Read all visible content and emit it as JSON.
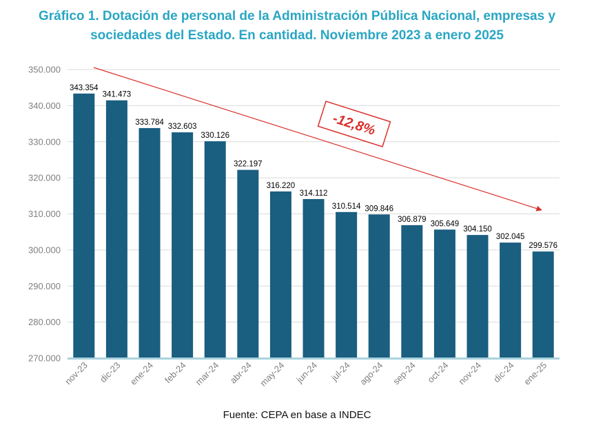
{
  "title_line1": "Gráfico 1. Dotación de personal de la Administración Pública Nacional, empresas y",
  "title_line2": "sociedades del Estado. En cantidad. Noviembre 2023 a enero 2025",
  "source": "Fuente: CEPA en base a INDEC",
  "colors": {
    "bar": "#1a5e80",
    "bar_base": "#a9d2de",
    "title": "#2aa6c3",
    "trend": "#d9302b",
    "grid": "#d9d9d9",
    "axis_text": "#7f7f7f"
  },
  "chart_data": {
    "type": "bar",
    "title": "Gráfico 1. Dotación de personal de la Administración Pública Nacional, empresas y sociedades del Estado. En cantidad. Noviembre 2023 a enero 2025",
    "categories": [
      "nov-23",
      "dic-23",
      "ene-24",
      "feb-24",
      "mar-24",
      "abr-24",
      "may-24",
      "jun-24",
      "jul-24",
      "ago-24",
      "sep-24",
      "oct-24",
      "nov-24",
      "dic-24",
      "ene-25"
    ],
    "values": [
      343354,
      341473,
      333784,
      332603,
      330126,
      322197,
      316220,
      314112,
      310514,
      309846,
      306879,
      305649,
      304150,
      302045,
      299576
    ],
    "value_labels": [
      "343.354",
      "341.473",
      "333.784",
      "332.603",
      "330.126",
      "322.197",
      "316.220",
      "314.112",
      "310.514",
      "309.846",
      "306.879",
      "305.649",
      "304.150",
      "302.045",
      "299.576"
    ],
    "y_ticks": [
      270000,
      280000,
      290000,
      300000,
      310000,
      320000,
      330000,
      340000,
      350000
    ],
    "y_tick_labels": [
      "270.000",
      "280.000",
      "290.000",
      "300.000",
      "310.000",
      "320.000",
      "330.000",
      "340.000",
      "350.000"
    ],
    "ylim": [
      270000,
      350000
    ],
    "grid": true,
    "annotation": "-12,8%"
  }
}
